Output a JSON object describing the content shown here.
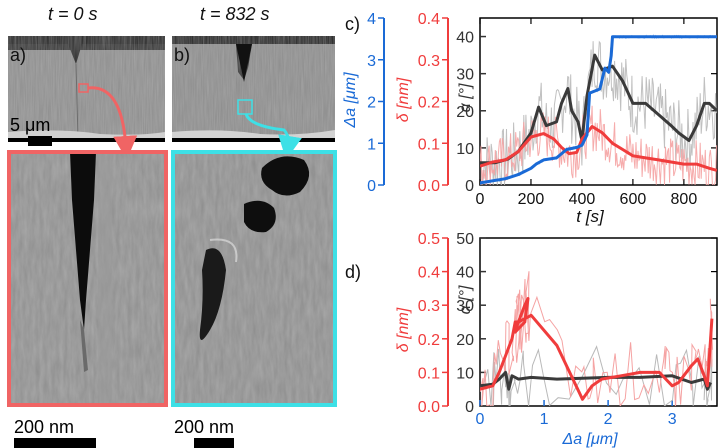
{
  "panel_a": {
    "label": "a)",
    "time_label": "t = 0 s",
    "scalebar_top": "5 μm",
    "scalebar_bottom": "200 nm",
    "zoom_color": "#f06464"
  },
  "panel_b": {
    "label": "b)",
    "time_label": "t = 832 s",
    "scalebar_bottom": "200 nm",
    "zoom_color": "#3de0e6"
  },
  "colors": {
    "blue": "#1a6ad6",
    "red": "#f03c3c",
    "red_light": "#f5a3a3",
    "dark": "#3a3a3a",
    "gray_light": "#b9b9b9"
  },
  "chart_data": [
    {
      "panel_label": "c)",
      "type": "line",
      "x_label": "t [s]",
      "xlim": [
        0,
        930
      ],
      "x_ticks": [
        "0",
        "200",
        "400",
        "600",
        "800"
      ],
      "axes": [
        {
          "label": "Δa [μm]",
          "color": "#1a6ad6",
          "ylim": [
            0,
            4
          ],
          "ticks": [
            "0",
            "1",
            "2",
            "3",
            "4"
          ]
        },
        {
          "label": "δ [nm]",
          "color": "#f03c3c",
          "ylim": [
            0,
            0.4
          ],
          "ticks": [
            "0.0",
            "0.1",
            "0.2",
            "0.3",
            "0.4"
          ]
        },
        {
          "label": "α [°]",
          "color": "#333333",
          "ylim": [
            0,
            45
          ],
          "ticks": [
            "0",
            "10",
            "20",
            "30",
            "40"
          ]
        }
      ],
      "series": [
        {
          "axis": "α",
          "role": "smoothed",
          "color": "#3a3a3a",
          "x": [
            0,
            60,
            110,
            150,
            200,
            230,
            260,
            300,
            320,
            345,
            360,
            385,
            400,
            420,
            450,
            480,
            520,
            560,
            600,
            650,
            700,
            750,
            780,
            820,
            850,
            880,
            900,
            930
          ],
          "y": [
            6,
            6,
            7,
            9,
            14,
            21,
            16,
            17,
            22,
            26,
            20,
            17,
            12,
            24,
            35,
            31,
            32,
            28,
            22,
            22,
            19,
            16,
            14,
            12,
            16,
            22,
            22,
            20
          ]
        },
        {
          "axis": "δ",
          "role": "smoothed",
          "color": "#f03c3c",
          "x": [
            0,
            50,
            100,
            150,
            200,
            250,
            290,
            320,
            350,
            380,
            400,
            440,
            480,
            520,
            560,
            600,
            650,
            700,
            750,
            800,
            850,
            900,
            930
          ],
          "y": [
            0.045,
            0.055,
            0.06,
            0.08,
            0.115,
            0.123,
            0.11,
            0.09,
            0.075,
            0.078,
            0.11,
            0.14,
            0.125,
            0.1,
            0.085,
            0.07,
            0.065,
            0.06,
            0.055,
            0.05,
            0.05,
            0.04,
            0.035
          ]
        },
        {
          "axis": "Δa",
          "role": "smoothed",
          "color": "#1a6ad6",
          "x": [
            0,
            100,
            150,
            200,
            220,
            250,
            300,
            340,
            380,
            400,
            420,
            430,
            470,
            490,
            505,
            515,
            520,
            560,
            600,
            700,
            800,
            900,
            930
          ],
          "y": [
            0.05,
            0.15,
            0.25,
            0.4,
            0.5,
            0.6,
            0.65,
            0.85,
            0.9,
            0.95,
            1.2,
            2.2,
            2.3,
            2.8,
            2.7,
            3.1,
            3.55,
            3.55,
            3.55,
            3.55,
            3.55,
            3.55,
            3.55
          ]
        }
      ]
    },
    {
      "panel_label": "d)",
      "type": "line",
      "x_label": "Δa [μm]",
      "xlim": [
        0,
        3.7
      ],
      "x_ticks": [
        "0",
        "1",
        "2",
        "3"
      ],
      "axes": [
        {
          "label": "δ [nm]",
          "color": "#f03c3c",
          "ylim": [
            0,
            0.5
          ],
          "ticks": [
            "0.0",
            "0.1",
            "0.2",
            "0.3",
            "0.4",
            "0.5"
          ]
        },
        {
          "label": "α [°]",
          "color": "#333333",
          "ylim": [
            0,
            50
          ],
          "ticks": [
            "0",
            "10",
            "20",
            "30",
            "40",
            "50"
          ]
        }
      ],
      "series": [
        {
          "axis": "α",
          "role": "smoothed",
          "color": "#3a3a3a",
          "x": [
            0,
            0.2,
            0.3,
            0.4,
            0.45,
            0.5,
            0.6,
            0.8,
            1.2,
            2.0,
            2.5,
            3.0,
            3.3,
            3.5,
            3.55,
            3.6
          ],
          "y": [
            6,
            6.5,
            8,
            10,
            5,
            9,
            8,
            8.5,
            8,
            8.5,
            8.5,
            9,
            7,
            8,
            5,
            7
          ]
        },
        {
          "axis": "δ",
          "role": "smoothed",
          "color": "#f03c3c",
          "x": [
            0,
            0.1,
            0.2,
            0.3,
            0.4,
            0.5,
            0.55,
            0.6,
            0.7,
            0.75,
            0.7,
            0.55,
            0.6,
            0.8,
            1.2,
            1.6,
            1.75,
            1.9,
            2.2,
            2.5,
            2.8,
            2.9,
            3.0,
            3.1,
            3.3,
            3.4,
            3.5,
            3.55,
            3.6,
            3.62
          ],
          "y": [
            0.05,
            0.055,
            0.06,
            0.1,
            0.15,
            0.2,
            0.25,
            0.25,
            0.3,
            0.32,
            0.25,
            0.22,
            0.25,
            0.27,
            0.18,
            0.02,
            0.06,
            0.08,
            0.09,
            0.1,
            0.1,
            0.08,
            0.06,
            0.07,
            0.12,
            0.14,
            0.09,
            0.06,
            0.2,
            0.26
          ]
        }
      ]
    }
  ]
}
